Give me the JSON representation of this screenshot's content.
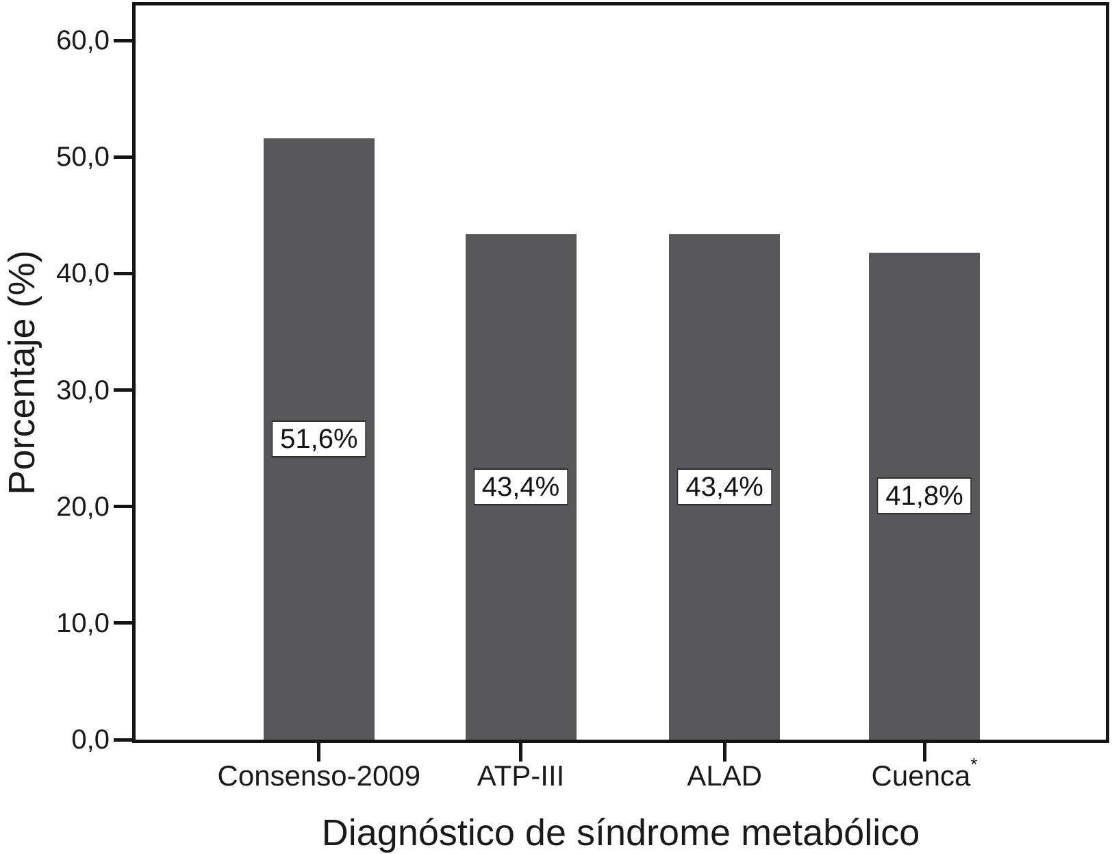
{
  "chart_data": {
    "type": "bar",
    "title": "",
    "xlabel": "Diagnóstico de síndrome metabólico",
    "ylabel": "Porcentaje (%)",
    "categories": [
      "Consenso-2009",
      "ATP-III",
      "ALAD",
      "Cuenca*"
    ],
    "values": [
      51.6,
      43.4,
      43.4,
      41.8
    ],
    "value_labels": [
      "51,6%",
      "43,4%",
      "43,4%",
      "41,8%"
    ],
    "ylim": [
      0,
      63
    ],
    "yticks": [
      0,
      10,
      20,
      30,
      40,
      50,
      60
    ],
    "ytick_labels": [
      "0,0",
      "10,0",
      "20,0",
      "30,0",
      "40,0",
      "50,0",
      "60,0"
    ],
    "grid": false,
    "legend_position": "none",
    "bar_color": "#58585a",
    "axis_color": "#161616",
    "text_color": "#1a1a1a",
    "value_label_box": {
      "background": "#ffffff",
      "border_color": "#2e2e2e",
      "text_color": "#141414"
    }
  }
}
